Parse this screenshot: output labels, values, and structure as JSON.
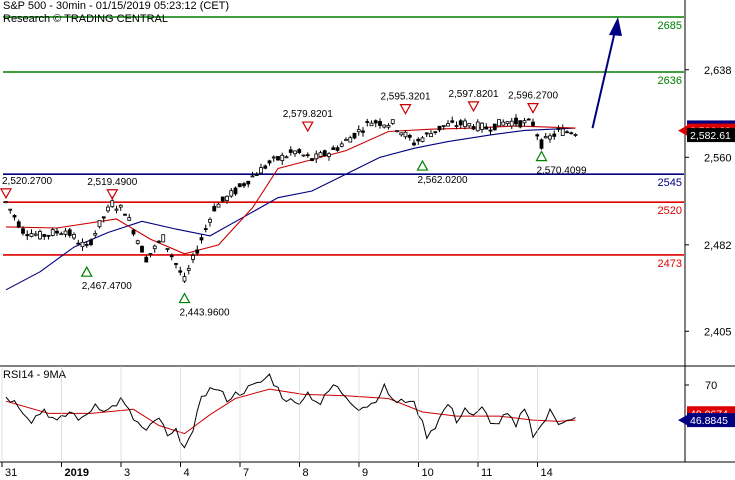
{
  "header": {
    "title": "S&P 500 - 30min - 01/15/2019 05:23:12 (CET)",
    "research": "Research © TRADING CENTRAL"
  },
  "chart_data": [
    {
      "type": "line",
      "subtype": "candlestick",
      "title": "S&P 500 - 30min - 01/15/2019 05:23:12 (CET)",
      "ylim": [
        2385,
        2700
      ],
      "y_ticks": [
        "2,638",
        "2,560",
        "2,482",
        "2,405"
      ],
      "x_ticks": [
        {
          "label": "31",
          "index": 0
        },
        {
          "label": "2019",
          "index": 14,
          "bold": true
        },
        {
          "label": "3",
          "index": 28
        },
        {
          "label": "4",
          "index": 42
        },
        {
          "label": "7",
          "index": 56
        },
        {
          "label": "8",
          "index": 70
        },
        {
          "label": "9",
          "index": 84
        },
        {
          "label": "10",
          "index": 98
        },
        {
          "label": "11",
          "index": 112
        },
        {
          "label": "14",
          "index": 126
        }
      ],
      "candles_count": 135,
      "anchors": [
        [
          0,
          2520
        ],
        [
          4,
          2495
        ],
        [
          8,
          2490
        ],
        [
          14,
          2495
        ],
        [
          19,
          2479
        ],
        [
          22,
          2500
        ],
        [
          25,
          2519
        ],
        [
          28,
          2512
        ],
        [
          33,
          2470
        ],
        [
          37,
          2488
        ],
        [
          42,
          2450
        ],
        [
          45,
          2478
        ],
        [
          49,
          2515
        ],
        [
          54,
          2530
        ],
        [
          57,
          2540
        ],
        [
          62,
          2555
        ],
        [
          68,
          2565
        ],
        [
          72,
          2558
        ],
        [
          77,
          2566
        ],
        [
          86,
          2592
        ],
        [
          91,
          2590
        ],
        [
          96,
          2573
        ],
        [
          103,
          2588
        ],
        [
          108,
          2590
        ],
        [
          113,
          2586
        ],
        [
          118,
          2592
        ],
        [
          124,
          2590
        ],
        [
          126,
          2572
        ],
        [
          130,
          2583
        ],
        [
          134,
          2583
        ]
      ],
      "ma_fast": [
        [
          0,
          2498
        ],
        [
          12,
          2497
        ],
        [
          26,
          2505
        ],
        [
          34,
          2487
        ],
        [
          42,
          2474
        ],
        [
          50,
          2482
        ],
        [
          58,
          2515
        ],
        [
          64,
          2550
        ],
        [
          72,
          2558
        ],
        [
          80,
          2566
        ],
        [
          90,
          2583
        ],
        [
          100,
          2585
        ],
        [
          110,
          2586
        ],
        [
          120,
          2588
        ],
        [
          134,
          2586
        ]
      ],
      "ma_slow": [
        [
          0,
          2442
        ],
        [
          8,
          2458
        ],
        [
          16,
          2480
        ],
        [
          24,
          2493
        ],
        [
          32,
          2503
        ],
        [
          40,
          2496
        ],
        [
          48,
          2490
        ],
        [
          56,
          2507
        ],
        [
          64,
          2524
        ],
        [
          72,
          2530
        ],
        [
          80,
          2545
        ],
        [
          88,
          2560
        ],
        [
          96,
          2568
        ],
        [
          104,
          2574
        ],
        [
          114,
          2580
        ],
        [
          122,
          2584
        ],
        [
          134,
          2586
        ]
      ],
      "horizontal_levels": [
        {
          "value": 2685,
          "label": "2685",
          "color": "#008000"
        },
        {
          "value": 2636,
          "label": "2636",
          "color": "#008000"
        },
        {
          "value": 2545,
          "label": "2545",
          "color": "#000080"
        },
        {
          "value": 2520,
          "label": "2520",
          "color": "#dd0000"
        },
        {
          "value": 2473,
          "label": "2473",
          "color": "#dd0000"
        }
      ],
      "price_tags": [
        {
          "label": "2,586.61",
          "value": 2586.61,
          "bg": "#000080",
          "fg": "#ffffff"
        },
        {
          "label": "2,586.23",
          "value": 2583.8,
          "bg": "#dd0000",
          "fg": "#ffffff"
        },
        {
          "label": "2,582.61",
          "value": 2579.8,
          "bg": "#000000",
          "fg": "#ffffff"
        }
      ],
      "annotations": [
        {
          "label": "2,520.2700",
          "index": 0,
          "value": 2520.27,
          "kind": "high"
        },
        {
          "label": "2,519.4900",
          "index": 25,
          "value": 2519.49,
          "kind": "high"
        },
        {
          "label": "2,467.4700",
          "index": 19,
          "value": 2467.47,
          "kind": "low"
        },
        {
          "label": "2,443.9600",
          "index": 42,
          "value": 2443.96,
          "kind": "low"
        },
        {
          "label": "2,579.8201",
          "index": 71,
          "value": 2579.82,
          "kind": "high"
        },
        {
          "label": "2,595.3201",
          "index": 94,
          "value": 2595.32,
          "kind": "high"
        },
        {
          "label": "2,597.8201",
          "index": 110,
          "value": 2597.82,
          "kind": "high"
        },
        {
          "label": "2,562.0200",
          "index": 98,
          "value": 2562.02,
          "kind": "low"
        },
        {
          "label": "2,596.2700",
          "index": 124,
          "value": 2596.27,
          "kind": "high"
        },
        {
          "label": "2,570.4099",
          "index": 126,
          "value": 2570.41,
          "kind": "low"
        }
      ],
      "forecast_arrow": {
        "from_index": 138,
        "from_value": 2586,
        "to_index": 144,
        "to_value": 2685
      },
      "colors": {
        "up": "#ffffff",
        "down": "#000000",
        "ma_fast": "#cc0000",
        "ma_slow": "#000080",
        "arrow": "#000080"
      }
    },
    {
      "type": "line",
      "title": "RSI14 - 9MA",
      "ylim": [
        20,
        85
      ],
      "y_ticks": [
        "70"
      ],
      "rsi_anchors": [
        [
          0,
          62
        ],
        [
          3,
          55
        ],
        [
          6,
          44
        ],
        [
          9,
          52
        ],
        [
          12,
          42
        ],
        [
          15,
          50
        ],
        [
          18,
          44
        ],
        [
          21,
          56
        ],
        [
          24,
          51
        ],
        [
          27,
          59
        ],
        [
          30,
          45
        ],
        [
          33,
          35
        ],
        [
          36,
          46
        ],
        [
          38,
          31
        ],
        [
          40,
          35
        ],
        [
          42,
          26
        ],
        [
          44,
          33
        ],
        [
          46,
          63
        ],
        [
          49,
          68
        ],
        [
          52,
          60
        ],
        [
          56,
          66
        ],
        [
          59,
          70
        ],
        [
          62,
          77
        ],
        [
          65,
          62
        ],
        [
          68,
          56
        ],
        [
          71,
          64
        ],
        [
          74,
          56
        ],
        [
          77,
          70
        ],
        [
          80,
          62
        ],
        [
          83,
          53
        ],
        [
          86,
          56
        ],
        [
          89,
          68
        ],
        [
          92,
          56
        ],
        [
          95,
          60
        ],
        [
          97,
          50
        ],
        [
          99,
          33
        ],
        [
          101,
          40
        ],
        [
          104,
          56
        ],
        [
          106,
          44
        ],
        [
          108,
          53
        ],
        [
          110,
          46
        ],
        [
          112,
          52
        ],
        [
          115,
          40
        ],
        [
          118,
          48
        ],
        [
          120,
          38
        ],
        [
          122,
          54
        ],
        [
          124,
          34
        ],
        [
          126,
          40
        ],
        [
          128,
          50
        ],
        [
          130,
          42
        ],
        [
          132,
          46
        ],
        [
          134,
          45
        ]
      ],
      "ma_anchors": [
        [
          0,
          58
        ],
        [
          10,
          49
        ],
        [
          20,
          49
        ],
        [
          30,
          52
        ],
        [
          36,
          40
        ],
        [
          42,
          34
        ],
        [
          48,
          48
        ],
        [
          54,
          60
        ],
        [
          62,
          67
        ],
        [
          70,
          63
        ],
        [
          80,
          62
        ],
        [
          90,
          60
        ],
        [
          98,
          50
        ],
        [
          106,
          47
        ],
        [
          116,
          47
        ],
        [
          124,
          44
        ],
        [
          130,
          43
        ],
        [
          134,
          44
        ]
      ],
      "value_tags": [
        {
          "label": "49.0674",
          "value": 49.07,
          "bg": "#dd0000",
          "fg": "#ffffff"
        },
        {
          "label": "46.8845",
          "value": 44.0,
          "bg": "#000080",
          "fg": "#ffffff"
        }
      ],
      "colors": {
        "rsi": "#000000",
        "ma": "#cc0000"
      }
    }
  ]
}
